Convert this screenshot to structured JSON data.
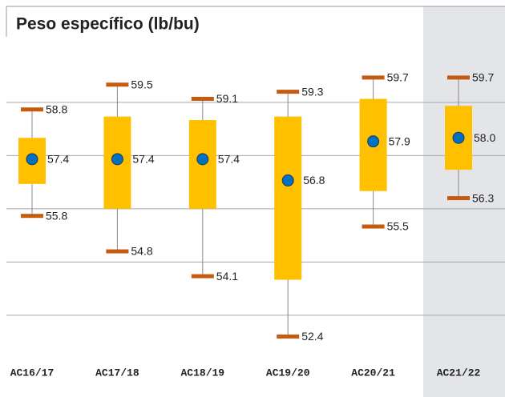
{
  "chart_data": {
    "type": "box",
    "title": "Peso específico (lb/bu)",
    "categories": [
      "AC16/17",
      "AC17/18",
      "AC18/19",
      "AC19/20",
      "AC20/21",
      "AC21/22"
    ],
    "whisker_high": [
      58.8,
      59.5,
      59.1,
      59.3,
      59.7,
      59.7
    ],
    "q3": [
      58.0,
      58.6,
      58.5,
      58.6,
      59.1,
      58.9
    ],
    "q1": [
      56.7,
      56.0,
      56.0,
      54.0,
      56.5,
      57.1
    ],
    "whisker_low": [
      55.8,
      54.8,
      54.1,
      52.4,
      55.5,
      56.3
    ],
    "mean": {
      "values": [
        57.4,
        57.4,
        57.4,
        56.8,
        57.9,
        58.0
      ],
      "value_labels": [
        "57.4",
        "57.4",
        "57.4",
        "56.8",
        "57.9",
        "58.0"
      ]
    },
    "ylim": [
      51.8,
      60.6
    ],
    "yticks": [
      53,
      54.5,
      56,
      57.5,
      59
    ],
    "grid": true,
    "box_color": "#ffc000",
    "cap_color": "#c55a11",
    "marker_color": "#0070c0",
    "highlight_index": 5,
    "highlight_color": "#e4e5e9"
  }
}
